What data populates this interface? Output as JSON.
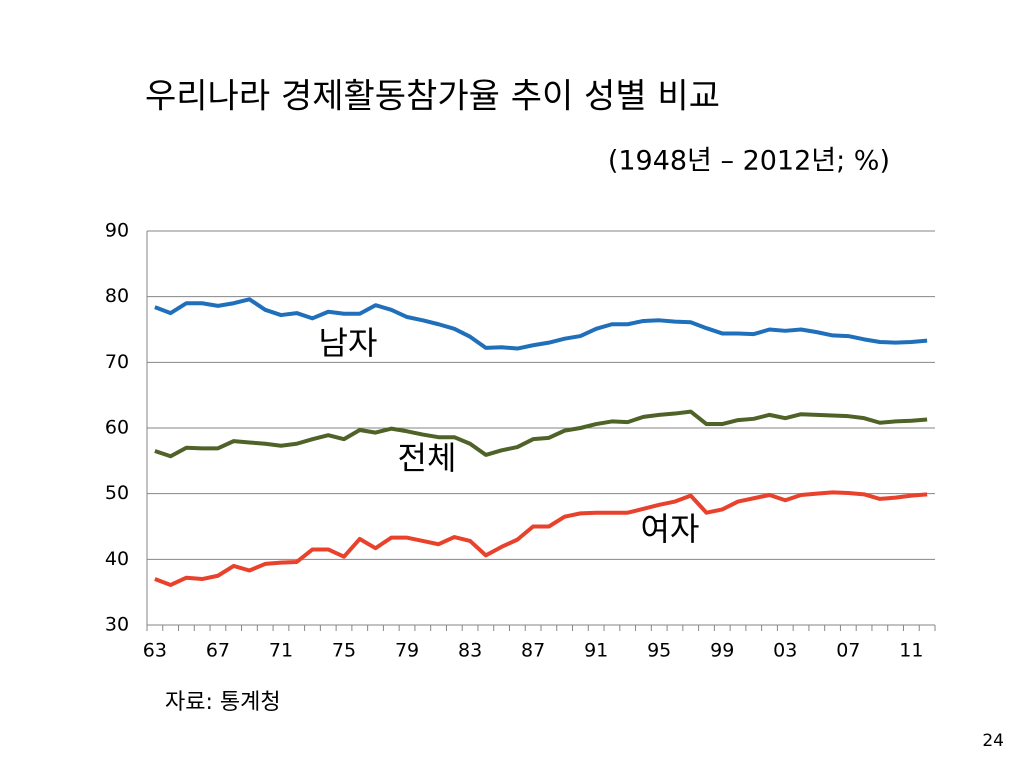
{
  "chart_data": {
    "type": "line",
    "title": "우리나라 경제활동참가율 추이 성별 비교",
    "subtitle": "(1948년 – 2012년; %)",
    "source": "자료: 통계청",
    "page_number": "24",
    "categories": [
      "63",
      null,
      null,
      null,
      "67",
      null,
      null,
      null,
      "71",
      null,
      null,
      null,
      "75",
      null,
      null,
      null,
      "79",
      null,
      null,
      null,
      "83",
      null,
      null,
      null,
      "87",
      null,
      null,
      null,
      "91",
      null,
      null,
      null,
      "95",
      null,
      null,
      null,
      "99",
      null,
      null,
      null,
      "03",
      null,
      null,
      null,
      "07",
      null,
      null,
      null,
      "11",
      null
    ],
    "series": [
      {
        "name": "남자",
        "color": "#1f6fba",
        "values": [
          78.4,
          77.5,
          79.0,
          79.0,
          78.6,
          79.0,
          79.6,
          78.0,
          77.2,
          77.5,
          76.7,
          77.7,
          77.4,
          77.4,
          78.7,
          78.0,
          76.9,
          76.4,
          75.8,
          75.1,
          73.9,
          72.2,
          72.3,
          72.1,
          72.6,
          73.0,
          73.6,
          74.0,
          75.1,
          75.8,
          75.8,
          76.3,
          76.4,
          76.2,
          76.1,
          75.2,
          74.4,
          74.4,
          74.3,
          75.0,
          74.8,
          75.0,
          74.6,
          74.1,
          74.0,
          73.5,
          73.1,
          73.0,
          73.1,
          73.3
        ]
      },
      {
        "name": "전체",
        "color": "#4f6228",
        "values": [
          56.5,
          55.7,
          57.0,
          56.9,
          56.9,
          58.0,
          57.8,
          57.6,
          57.3,
          57.6,
          58.3,
          58.9,
          58.3,
          59.7,
          59.3,
          59.9,
          59.5,
          59.0,
          58.6,
          58.6,
          57.6,
          55.9,
          56.6,
          57.1,
          58.3,
          58.5,
          59.6,
          60.0,
          60.6,
          61.0,
          60.9,
          61.7,
          62.0,
          62.2,
          62.5,
          60.6,
          60.6,
          61.2,
          61.4,
          62.0,
          61.5,
          62.1,
          62.0,
          61.9,
          61.8,
          61.5,
          60.8,
          61.0,
          61.1,
          61.3
        ]
      },
      {
        "name": "여자",
        "color": "#e8412c",
        "values": [
          37.0,
          36.1,
          37.2,
          37.0,
          37.5,
          39.0,
          38.3,
          39.3,
          39.5,
          39.6,
          41.5,
          41.5,
          40.4,
          43.1,
          41.7,
          43.3,
          43.3,
          42.8,
          42.3,
          43.4,
          42.8,
          40.6,
          41.9,
          43.0,
          45.0,
          45.0,
          46.5,
          47.0,
          47.1,
          47.1,
          47.1,
          47.7,
          48.3,
          48.8,
          49.7,
          47.1,
          47.6,
          48.8,
          49.3,
          49.8,
          49.0,
          49.8,
          50.0,
          50.2,
          50.1,
          49.9,
          49.2,
          49.4,
          49.7,
          49.9
        ]
      }
    ],
    "ylim": [
      30,
      90
    ],
    "yticks": [
      30,
      40,
      50,
      60,
      70,
      80,
      90
    ],
    "grid": true
  }
}
